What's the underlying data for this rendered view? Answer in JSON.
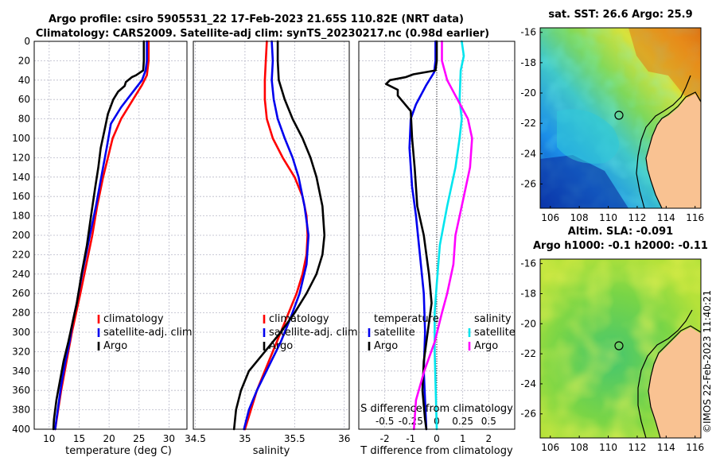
{
  "title": {
    "line1": "Argo profile: csiro 5905531_22 17-Feb-2023 21.65S 110.82E (NRT data)",
    "line2": "Climatology: CARS2009. Satellite-adj clim: synTS_20230217.nc (0.98d earlier)"
  },
  "colors": {
    "climatology": "#ff0000",
    "satellite": "#0000ee",
    "argo": "#000000",
    "sat_salinity": "#00e5ee",
    "argo_salinity": "#ff00ff",
    "land": "#f9c292"
  },
  "depth_ticks": [
    "0",
    "20",
    "40",
    "60",
    "80",
    "100",
    "120",
    "140",
    "160",
    "180",
    "200",
    "220",
    "240",
    "260",
    "280",
    "300",
    "320",
    "340",
    "360",
    "380",
    "400"
  ],
  "footer": "©IMOS 22-Feb-2023 11:40:21",
  "chart_data": [
    {
      "type": "line",
      "name": "temperature",
      "xlabel": "temperature (deg C)",
      "xlim": [
        7.5,
        33
      ],
      "ylim": [
        0,
        400
      ],
      "xticks": [
        "10",
        "15",
        "20",
        "25",
        "30"
      ],
      "legend": [
        "climatology",
        "satellite-adj. clim",
        "Argo"
      ],
      "series": [
        {
          "name": "climatology",
          "color": "#ff0000",
          "points": [
            [
              26.6,
              0
            ],
            [
              26.6,
              20
            ],
            [
              26.3,
              35
            ],
            [
              25.5,
              45
            ],
            [
              24,
              60
            ],
            [
              22,
              80
            ],
            [
              20.6,
              100
            ],
            [
              19.8,
              120
            ],
            [
              19,
              140
            ],
            [
              18,
              170
            ],
            [
              17.2,
              200
            ],
            [
              16.2,
              230
            ],
            [
              15.2,
              260
            ],
            [
              14.5,
              280
            ],
            [
              13.8,
              300
            ],
            [
              13.2,
              320
            ],
            [
              12.6,
              340
            ],
            [
              12,
              360
            ],
            [
              11.5,
              380
            ],
            [
              11,
              400
            ]
          ]
        },
        {
          "name": "satellite-adj. clim",
          "color": "#0000ee",
          "points": [
            [
              26.3,
              0
            ],
            [
              26.3,
              20
            ],
            [
              26.1,
              30
            ],
            [
              25.5,
              40
            ],
            [
              24,
              52
            ],
            [
              22,
              68
            ],
            [
              20.3,
              85
            ],
            [
              19.6,
              110
            ],
            [
              18.7,
              140
            ],
            [
              17.8,
              170
            ],
            [
              16.8,
              200
            ],
            [
              15.5,
              240
            ],
            [
              14.6,
              270
            ],
            [
              13.9,
              290
            ],
            [
              13.4,
              310
            ],
            [
              12.7,
              330
            ],
            [
              12,
              355
            ],
            [
              11.2,
              390
            ],
            [
              11,
              400
            ]
          ]
        },
        {
          "name": "Argo",
          "color": "#000000",
          "points": [
            [
              25.8,
              0
            ],
            [
              25.8,
              20
            ],
            [
              25.7,
              30
            ],
            [
              24.5,
              35
            ],
            [
              23.8,
              37
            ],
            [
              22.8,
              42
            ],
            [
              22.6,
              46
            ],
            [
              21.5,
              52
            ],
            [
              20.7,
              60
            ],
            [
              19.8,
              75
            ],
            [
              19.3,
              90
            ],
            [
              18.6,
              110
            ],
            [
              18.2,
              130
            ],
            [
              17.7,
              150
            ],
            [
              17.1,
              175
            ],
            [
              16.3,
              210
            ],
            [
              15.4,
              240
            ],
            [
              14.6,
              270
            ],
            [
              13.9,
              290
            ],
            [
              13.2,
              310
            ],
            [
              12.4,
              330
            ],
            [
              11.8,
              350
            ],
            [
              11.2,
              370
            ],
            [
              10.8,
              390
            ],
            [
              10.7,
              400
            ]
          ]
        }
      ]
    },
    {
      "type": "line",
      "name": "salinity",
      "xlabel": "salinity",
      "xlim": [
        34.48,
        36.05
      ],
      "ylim": [
        0,
        400
      ],
      "xticks": [
        "34.5",
        "35",
        "35.5",
        "36"
      ],
      "legend": [
        "climatology",
        "satellite-adj. clim",
        "Argo"
      ],
      "series": [
        {
          "name": "climatology",
          "color": "#ff0000",
          "points": [
            [
              35.22,
              0
            ],
            [
              35.21,
              20
            ],
            [
              35.2,
              40
            ],
            [
              35.2,
              60
            ],
            [
              35.22,
              80
            ],
            [
              35.28,
              100
            ],
            [
              35.38,
              120
            ],
            [
              35.5,
              140
            ],
            [
              35.58,
              160
            ],
            [
              35.62,
              180
            ],
            [
              35.63,
              200
            ],
            [
              35.62,
              220
            ],
            [
              35.58,
              240
            ],
            [
              35.52,
              260
            ],
            [
              35.44,
              280
            ],
            [
              35.36,
              300
            ],
            [
              35.28,
              320
            ],
            [
              35.2,
              340
            ],
            [
              35.12,
              360
            ],
            [
              35.06,
              380
            ],
            [
              35.0,
              400
            ]
          ]
        },
        {
          "name": "satellite-adj. clim",
          "color": "#0000ee",
          "points": [
            [
              35.27,
              0
            ],
            [
              35.28,
              20
            ],
            [
              35.27,
              40
            ],
            [
              35.29,
              60
            ],
            [
              35.33,
              80
            ],
            [
              35.4,
              100
            ],
            [
              35.48,
              120
            ],
            [
              35.54,
              140
            ],
            [
              35.6,
              170
            ],
            [
              35.64,
              200
            ],
            [
              35.62,
              230
            ],
            [
              35.55,
              260
            ],
            [
              35.46,
              285
            ],
            [
              35.36,
              310
            ],
            [
              35.24,
              335
            ],
            [
              35.12,
              360
            ],
            [
              35.04,
              380
            ],
            [
              34.99,
              400
            ]
          ]
        },
        {
          "name": "Argo",
          "color": "#000000",
          "points": [
            [
              35.33,
              0
            ],
            [
              35.33,
              20
            ],
            [
              35.34,
              40
            ],
            [
              35.4,
              60
            ],
            [
              35.48,
              80
            ],
            [
              35.58,
              100
            ],
            [
              35.66,
              120
            ],
            [
              35.72,
              140
            ],
            [
              35.78,
              170
            ],
            [
              35.8,
              200
            ],
            [
              35.78,
              220
            ],
            [
              35.72,
              240
            ],
            [
              35.62,
              260
            ],
            [
              35.5,
              280
            ],
            [
              35.36,
              300
            ],
            [
              35.2,
              320
            ],
            [
              35.04,
              340
            ],
            [
              34.96,
              360
            ],
            [
              34.91,
              380
            ],
            [
              34.89,
              400
            ]
          ]
        }
      ]
    },
    {
      "type": "line",
      "name": "difference",
      "xlabel": "T difference from climatology",
      "xlabel2": "S difference from climatology",
      "xlim": [
        -3,
        3
      ],
      "ylim": [
        0,
        400
      ],
      "xticks": [
        "-2",
        "-1",
        "0",
        "1",
        "2"
      ],
      "xticks2": [
        "-0.5",
        "-0.25",
        "0",
        "0.25",
        "0.5"
      ],
      "legend_left_title": "temperature",
      "legend_right_title": "salinity",
      "legend_left": [
        "satellite",
        "Argo"
      ],
      "legend_right": [
        "satellite",
        "Argo"
      ],
      "series": [
        {
          "name": "T satellite",
          "color": "#0000ee",
          "points": [
            [
              -0.05,
              0
            ],
            [
              -0.05,
              20
            ],
            [
              -0.1,
              32
            ],
            [
              -0.4,
              45
            ],
            [
              -0.8,
              65
            ],
            [
              -1.0,
              80
            ],
            [
              -1.05,
              110
            ],
            [
              -0.95,
              150
            ],
            [
              -0.8,
              180
            ],
            [
              -0.65,
              220
            ],
            [
              -0.5,
              260
            ],
            [
              -0.45,
              300
            ],
            [
              -0.5,
              340
            ],
            [
              -0.45,
              370
            ],
            [
              -0.4,
              400
            ]
          ]
        },
        {
          "name": "T Argo",
          "color": "#000000",
          "points": [
            [
              0.0,
              0
            ],
            [
              0.0,
              20
            ],
            [
              -0.05,
              30
            ],
            [
              -0.9,
              34
            ],
            [
              -1.2,
              37
            ],
            [
              -1.8,
              40
            ],
            [
              -1.95,
              44
            ],
            [
              -1.5,
              50
            ],
            [
              -1.5,
              56
            ],
            [
              -1.25,
              64
            ],
            [
              -1.0,
              72
            ],
            [
              -0.95,
              100
            ],
            [
              -0.85,
              130
            ],
            [
              -0.75,
              170
            ],
            [
              -0.5,
              200
            ],
            [
              -0.3,
              240
            ],
            [
              -0.2,
              270
            ],
            [
              -0.35,
              300
            ],
            [
              -0.5,
              330
            ],
            [
              -0.55,
              360
            ],
            [
              -0.45,
              390
            ],
            [
              -0.4,
              400
            ]
          ]
        },
        {
          "name": "S satellite",
          "color": "#00e5ee",
          "points": [
            [
              0.24,
              0
            ],
            [
              0.26,
              15
            ],
            [
              0.23,
              30
            ],
            [
              0.22,
              60
            ],
            [
              0.24,
              80
            ],
            [
              0.22,
              100
            ],
            [
              0.18,
              130
            ],
            [
              0.1,
              170
            ],
            [
              0.03,
              210
            ],
            [
              0.0,
              250
            ],
            [
              -0.02,
              280
            ],
            [
              -0.02,
              320
            ],
            [
              -0.01,
              360
            ],
            [
              0.0,
              400
            ]
          ]
        },
        {
          "name": "S Argo",
          "color": "#ff00ff",
          "points": [
            [
              0.05,
              0
            ],
            [
              0.05,
              20
            ],
            [
              0.1,
              40
            ],
            [
              0.2,
              60
            ],
            [
              0.3,
              80
            ],
            [
              0.34,
              100
            ],
            [
              0.32,
              130
            ],
            [
              0.24,
              170
            ],
            [
              0.18,
              200
            ],
            [
              0.16,
              230
            ],
            [
              0.1,
              260
            ],
            [
              0.05,
              280
            ],
            [
              -0.02,
              310
            ],
            [
              -0.12,
              340
            ],
            [
              -0.2,
              370
            ],
            [
              -0.22,
              400
            ]
          ]
        }
      ]
    },
    {
      "type": "heatmap",
      "name": "sat-sst-map",
      "title": "sat. SST: 26.6  Argo: 25.9",
      "xticks": [
        "106",
        "108",
        "110",
        "112",
        "114",
        "116"
      ],
      "yticks": [
        "-16",
        "-18",
        "-20",
        "-22",
        "-24",
        "-26"
      ],
      "xlim": [
        105.3,
        116.4
      ],
      "ylim": [
        -27.6,
        -15.7
      ],
      "marker": [
        110.82,
        -21.65
      ]
    },
    {
      "type": "heatmap",
      "name": "altim-sla-map",
      "title": "Altim. SLA: -0.091",
      "subtitle": "Argo h1000: -0.1 h2000: -0.11",
      "xticks": [
        "106",
        "108",
        "110",
        "112",
        "114",
        "116"
      ],
      "yticks": [
        "-16",
        "-18",
        "-20",
        "-22",
        "-24",
        "-26"
      ],
      "xlim": [
        105.3,
        116.4
      ],
      "ylim": [
        -27.6,
        -15.7
      ],
      "marker": [
        110.82,
        -21.65
      ]
    }
  ]
}
